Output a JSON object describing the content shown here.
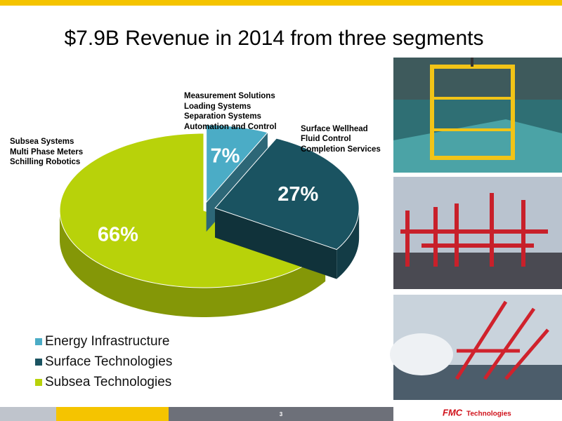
{
  "chart_data": {
    "type": "pie",
    "title": "$7.9B Revenue in 2014 from three segments",
    "categories": [
      "Energy Infrastructure",
      "Surface Technologies",
      "Subsea Technologies"
    ],
    "values": [
      7,
      27,
      66
    ],
    "value_labels": [
      "7%",
      "27%",
      "66%"
    ],
    "colors": [
      "#4bacc6",
      "#1a5361",
      "#b8d20a"
    ],
    "annotations": [
      [
        "Measurement Solutions",
        "Loading Systems",
        "Separation Systems",
        "Automation and Control"
      ],
      [
        "Surface Wellhead",
        "Fluid Control",
        "Completion Services"
      ],
      [
        "Subsea Systems",
        "Multi Phase Meters",
        "Schilling Robotics"
      ]
    ],
    "legend": "bottom-left"
  },
  "footer": {
    "page": "3",
    "logo_mark": "FMC",
    "logo_text": "Technologies"
  }
}
